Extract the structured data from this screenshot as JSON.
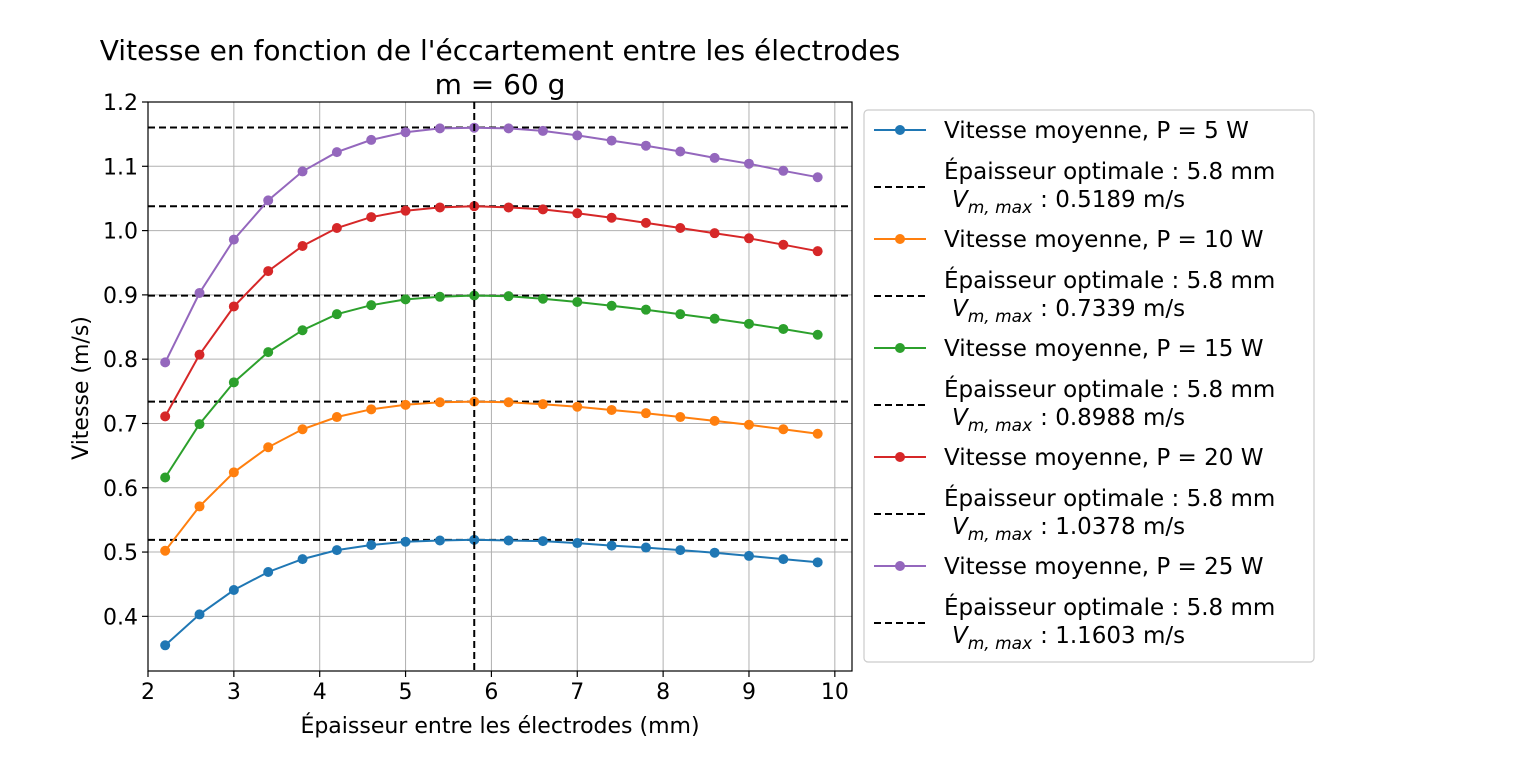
{
  "chart_data": {
    "type": "line",
    "title": "Vitesse en fonction de l'éccartement entre les électrodes",
    "subtitle": "m = 60 g",
    "xlabel": "Épaisseur entre les électrodes (mm)",
    "ylabel": "Vitesse (m/s)",
    "xlim": [
      2.0,
      10.2
    ],
    "ylim": [
      0.315,
      1.2
    ],
    "x_ticks": [
      "2",
      "3",
      "4",
      "5",
      "6",
      "7",
      "8",
      "9",
      "10"
    ],
    "y_ticks": [
      "0.4",
      "0.5",
      "0.6",
      "0.7",
      "0.8",
      "0.9",
      "1.0",
      "1.1",
      "1.2"
    ],
    "grid": true,
    "legend_position": "outside-right",
    "x": [
      2.2,
      2.6,
      3.0,
      3.4,
      3.8,
      4.2,
      4.6,
      5.0,
      5.4,
      5.8,
      6.2,
      6.6,
      7.0,
      7.4,
      7.8,
      8.2,
      8.6,
      9.0,
      9.4,
      9.8
    ],
    "series": [
      {
        "name": "Vitesse moyenne, P = 5 W",
        "color": "#1f77b4",
        "values": [
          0.355,
          0.403,
          0.441,
          0.469,
          0.489,
          0.503,
          0.511,
          0.516,
          0.518,
          0.519,
          0.518,
          0.517,
          0.514,
          0.51,
          0.507,
          0.503,
          0.499,
          0.494,
          0.489,
          0.484
        ],
        "optimal_label_line1": "Épaisseur optimale : 5.8 mm",
        "optimal_label_value": ": 0.5189 m/s",
        "vmax": 0.5189
      },
      {
        "name": "Vitesse moyenne, P = 10 W",
        "color": "#ff7f0e",
        "values": [
          0.502,
          0.571,
          0.624,
          0.663,
          0.691,
          0.71,
          0.722,
          0.729,
          0.733,
          0.734,
          0.733,
          0.73,
          0.726,
          0.721,
          0.716,
          0.71,
          0.704,
          0.698,
          0.691,
          0.684
        ],
        "optimal_label_line1": "Épaisseur optimale : 5.8 mm",
        "optimal_label_value": ": 0.7339 m/s",
        "vmax": 0.7339
      },
      {
        "name": "Vitesse moyenne, P = 15 W",
        "color": "#2ca02c",
        "values": [
          0.616,
          0.699,
          0.764,
          0.811,
          0.845,
          0.87,
          0.884,
          0.893,
          0.897,
          0.899,
          0.898,
          0.894,
          0.889,
          0.883,
          0.877,
          0.87,
          0.863,
          0.855,
          0.847,
          0.838
        ],
        "optimal_label_line1": "Épaisseur optimale : 5.8 mm",
        "optimal_label_value": ": 0.8988 m/s",
        "vmax": 0.8988
      },
      {
        "name": "Vitesse moyenne, P = 20 W",
        "color": "#d62728",
        "values": [
          0.711,
          0.807,
          0.882,
          0.937,
          0.976,
          1.004,
          1.021,
          1.031,
          1.036,
          1.038,
          1.036,
          1.033,
          1.027,
          1.02,
          1.012,
          1.004,
          0.996,
          0.988,
          0.978,
          0.968
        ],
        "optimal_label_line1": "Épaisseur optimale : 5.8 mm",
        "optimal_label_value": ": 1.0378 m/s",
        "vmax": 1.0378
      },
      {
        "name": "Vitesse moyenne, P = 25 W",
        "color": "#9467bd",
        "values": [
          0.795,
          0.903,
          0.986,
          1.047,
          1.092,
          1.122,
          1.141,
          1.153,
          1.159,
          1.16,
          1.159,
          1.155,
          1.148,
          1.14,
          1.132,
          1.123,
          1.113,
          1.104,
          1.093,
          1.083
        ],
        "optimal_label_line1": "Épaisseur optimale : 5.8 mm",
        "optimal_label_value": ": 1.1603 m/s",
        "vmax": 1.1603
      }
    ],
    "optimal_x": 5.8,
    "vmax_symbol": "V",
    "vmax_subscript": "m, max"
  }
}
